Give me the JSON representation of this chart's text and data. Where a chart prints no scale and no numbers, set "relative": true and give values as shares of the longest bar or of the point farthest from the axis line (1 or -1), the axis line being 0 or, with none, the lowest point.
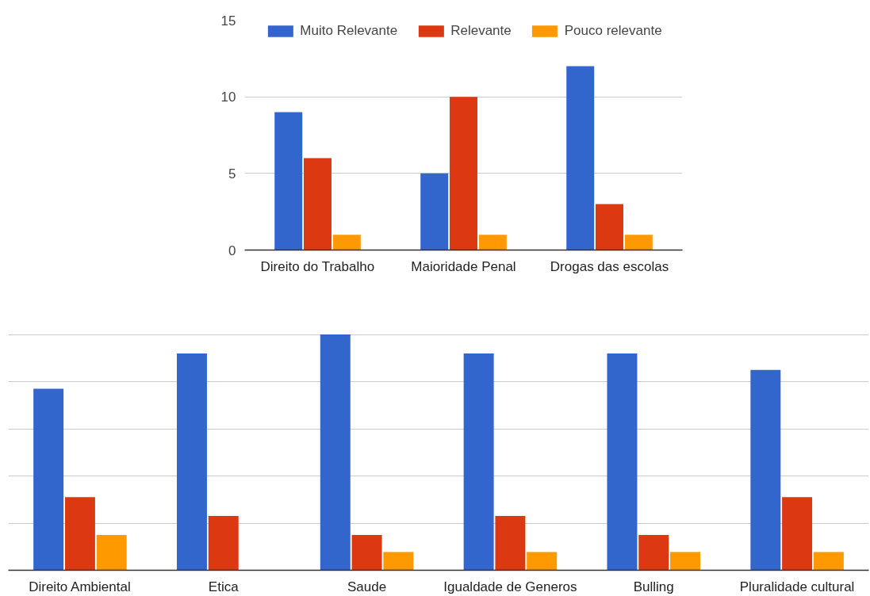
{
  "chart_data": [
    {
      "type": "bar",
      "categories": [
        "Direito do Trabalho",
        "Maioridade Penal",
        "Drogas das escolas"
      ],
      "series": [
        {
          "name": "Muito Relevante",
          "color": "#3366cc",
          "values": [
            9,
            5,
            12
          ]
        },
        {
          "name": "Relevante",
          "color": "#dc3912",
          "values": [
            6,
            10,
            3
          ]
        },
        {
          "name": "Pouco relevante",
          "color": "#ff9900",
          "values": [
            1,
            1,
            1
          ]
        }
      ],
      "ylim": [
        0,
        15
      ],
      "yticks": [
        0,
        5,
        10,
        15
      ],
      "grid": "y",
      "legend": "top"
    },
    {
      "type": "bar",
      "relative": true,
      "categories": [
        "Direito Ambiental",
        "Etica",
        "Saude",
        "Igualdade de Generos",
        "Bulling",
        "Pluralidade cultural"
      ],
      "series": [
        {
          "color": "#3366cc",
          "values": [
            0.77,
            0.92,
            1,
            0.92,
            0.92,
            0.85
          ]
        },
        {
          "color": "#dc3912",
          "values": [
            0.31,
            0.23,
            0.15,
            0.23,
            0.15,
            0.31
          ]
        },
        {
          "color": "#ff9900",
          "values": [
            0.15,
            null,
            0.077,
            0.077,
            0.077,
            0.077
          ]
        }
      ],
      "grid": "y"
    }
  ]
}
